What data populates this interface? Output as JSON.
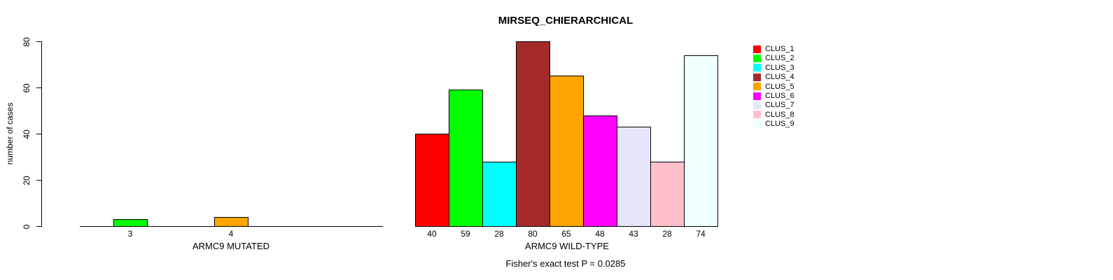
{
  "chart_data": {
    "type": "bar",
    "title": "MIRSEQ_CHIERARCHICAL",
    "ylabel": "number of cases",
    "ylim": [
      0,
      80
    ],
    "yticks": [
      0,
      20,
      40,
      60,
      80
    ],
    "grid": false,
    "legend_position": "top-right",
    "subtitle": "Fisher's exact test P = 0.0285",
    "series_names": [
      "CLUS_1",
      "CLUS_2",
      "CLUS_3",
      "CLUS_4",
      "CLUS_5",
      "CLUS_6",
      "CLUS_7",
      "CLUS_8",
      "CLUS_9"
    ],
    "series_colors": [
      "#FF0000",
      "#00FF00",
      "#00FFFF",
      "#A52A2A",
      "#FFA500",
      "#FF00FF",
      "#E6E6FA",
      "#FFC0CB",
      "#F0FFFF"
    ],
    "groups": [
      {
        "label": "ARMC9 MUTATED",
        "values": [
          0,
          3,
          0,
          0,
          4,
          0,
          0,
          0,
          0
        ]
      },
      {
        "label": "ARMC9 WILD-TYPE",
        "values": [
          40,
          59,
          28,
          80,
          65,
          48,
          43,
          28,
          74
        ]
      }
    ]
  }
}
